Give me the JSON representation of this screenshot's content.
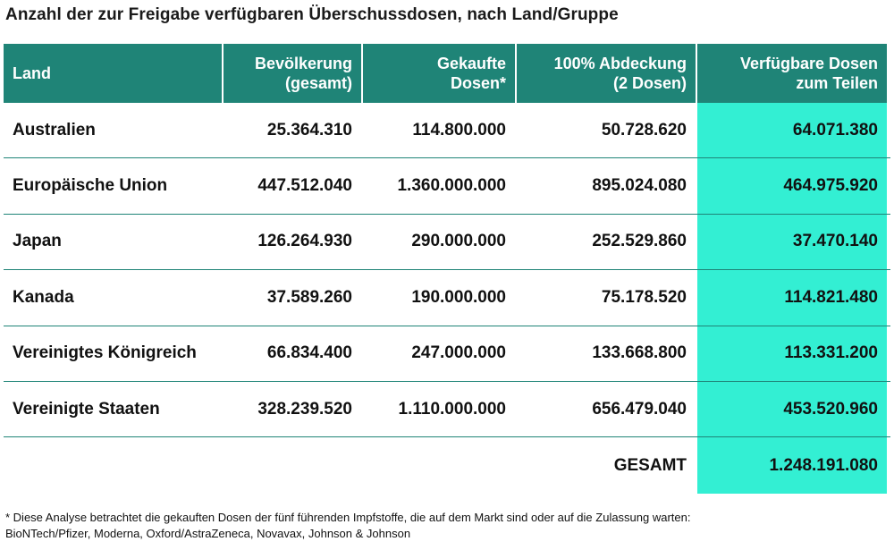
{
  "title": "Anzahl der zur Freigabe verfügbaren Überschussdosen, nach Land/Gruppe",
  "chart_data": {
    "type": "table",
    "columns": [
      {
        "line1": "Land",
        "line2": ""
      },
      {
        "line1": "Bevölkerung",
        "line2": "(gesamt)"
      },
      {
        "line1": "Gekaufte",
        "line2": "Dosen*"
      },
      {
        "line1": "100% Abdeckung",
        "line2": "(2 Dosen)"
      },
      {
        "line1": "Verfügbare Dosen",
        "line2": "zum Teilen"
      }
    ],
    "rows": [
      {
        "land": "Australien",
        "bevoelkerung": "25.364.310",
        "gekauft": "114.800.000",
        "abdeckung": "50.728.620",
        "verfuegbar": "64.071.380"
      },
      {
        "land": "Europäische Union",
        "bevoelkerung": "447.512.040",
        "gekauft": "1.360.000.000",
        "abdeckung": "895.024.080",
        "verfuegbar": "464.975.920"
      },
      {
        "land": "Japan",
        "bevoelkerung": "126.264.930",
        "gekauft": "290.000.000",
        "abdeckung": "252.529.860",
        "verfuegbar": "37.470.140"
      },
      {
        "land": "Kanada",
        "bevoelkerung": "37.589.260",
        "gekauft": "190.000.000",
        "abdeckung": "75.178.520",
        "verfuegbar": "114.821.480"
      },
      {
        "land": "Vereinigtes Königreich",
        "bevoelkerung": "66.834.400",
        "gekauft": "247.000.000",
        "abdeckung": "133.668.800",
        "verfuegbar": "113.331.200"
      },
      {
        "land": "Vereinigte Staaten",
        "bevoelkerung": "328.239.520",
        "gekauft": "1.110.000.000",
        "abdeckung": "656.479.040",
        "verfuegbar": "453.520.960"
      }
    ],
    "total": {
      "label": "GESAMT",
      "value": "1.248.191.080"
    }
  },
  "footnote": {
    "line1": "* Diese Analyse betrachtet die gekauften Dosen der fünf führenden Impfstoffe, die auf dem Markt sind oder auf die Zulassung warten:",
    "line2": "BioNTech/Pfizer, Moderna, Oxford/AstraZeneca, Novavax, Johnson & Johnson"
  },
  "colors": {
    "header": "#1f8477",
    "highlight": "#33efd3",
    "rule": "#1f8477"
  }
}
